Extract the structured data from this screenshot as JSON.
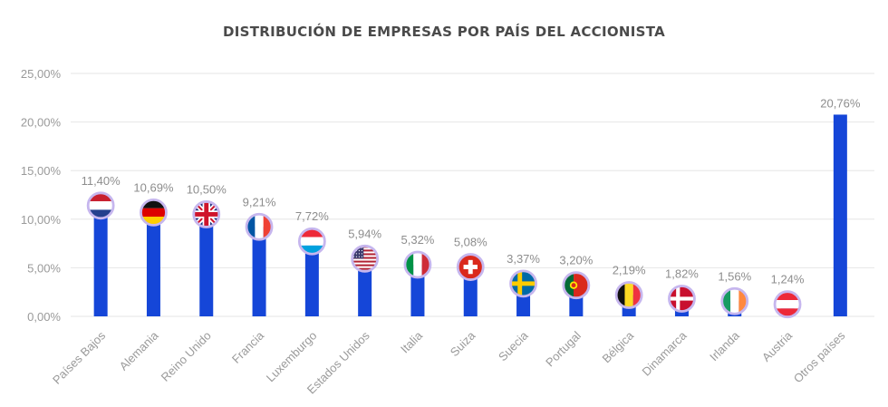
{
  "colors": {
    "bar": "#1546d8",
    "grid": "#e6e6e6",
    "text": "#9a9a9a",
    "title": "#4a4a4a"
  },
  "chart_data": {
    "type": "bar",
    "title": "DISTRIBUCIÓN DE EMPRESAS POR PAÍS DEL ACCIONISTA",
    "xlabel": "",
    "ylabel": "",
    "ylim": [
      0,
      25
    ],
    "yticks": [
      "0,00%",
      "5,00%",
      "10,00%",
      "15,00%",
      "20,00%",
      "25,00%"
    ],
    "grid": true,
    "categories": [
      "Países Bajos",
      "Alemania",
      "Reino Unido",
      "Francia",
      "Luxemburgo",
      "Estados Unidos",
      "Italia",
      "Suiza",
      "Suecia",
      "Portugal",
      "Bélgica",
      "Dinamarca",
      "Irlanda",
      "Austria",
      "Otros países"
    ],
    "values": [
      11.4,
      10.69,
      10.5,
      9.21,
      7.72,
      5.94,
      5.32,
      5.08,
      3.37,
      3.2,
      2.19,
      1.82,
      1.56,
      1.24,
      20.76
    ],
    "data_labels": [
      "11,40%",
      "10,69%",
      "10,50%",
      "9,21%",
      "7,72%",
      "5,94%",
      "5,32%",
      "5,08%",
      "3,37%",
      "3,20%",
      "2,19%",
      "1,82%",
      "1,56%",
      "1,24%",
      "20,76%"
    ],
    "flag_icons": [
      "netherlands-flag-icon",
      "germany-flag-icon",
      "uk-flag-icon",
      "france-flag-icon",
      "luxembourg-flag-icon",
      "usa-flag-icon",
      "italy-flag-icon",
      "switzerland-flag-icon",
      "sweden-flag-icon",
      "portugal-flag-icon",
      "belgium-flag-icon",
      "denmark-flag-icon",
      "ireland-flag-icon",
      "austria-flag-icon",
      ""
    ]
  }
}
